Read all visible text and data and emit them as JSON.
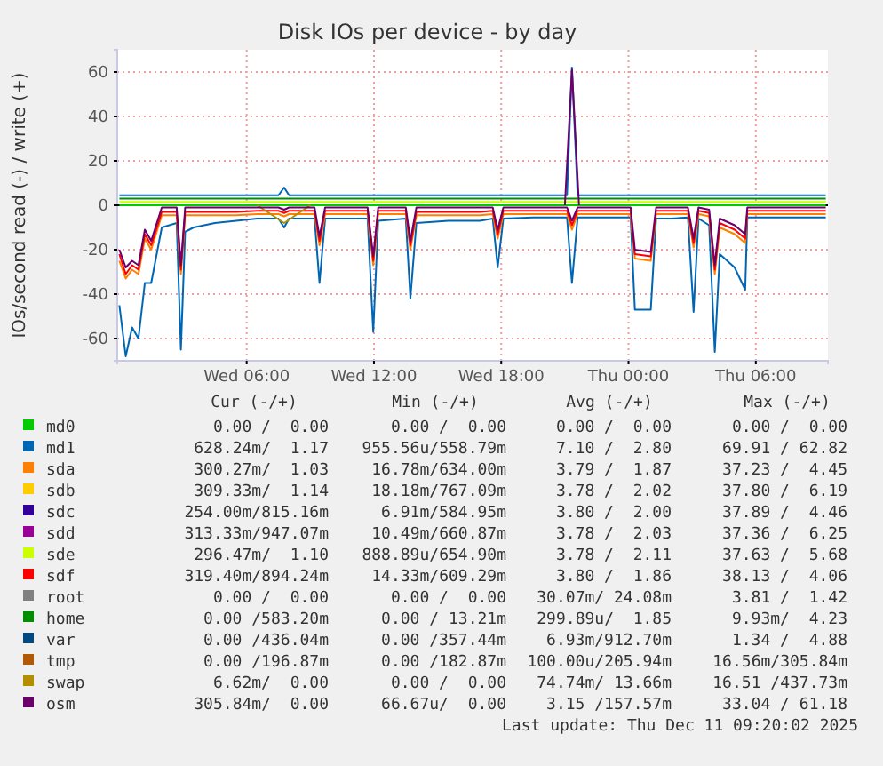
{
  "chart_data": {
    "type": "line",
    "title": "Disk IOs per device - by day",
    "ylabel": "IOs/second read (-) / write (+)",
    "x": [
      "2025-12-10T00:00",
      "2025-12-10T00:18",
      "2025-12-10T00:36",
      "2025-12-10T00:54",
      "2025-12-10T01:12",
      "2025-12-10T01:30",
      "2025-12-10T02:00",
      "2025-12-10T02:42",
      "2025-12-10T02:54",
      "2025-12-10T03:06",
      "2025-12-10T03:30",
      "2025-12-10T04:30",
      "2025-12-10T05:30",
      "2025-12-10T06:30",
      "2025-12-10T07:30",
      "2025-12-10T07:46",
      "2025-12-10T08:00",
      "2025-12-10T09:12",
      "2025-12-10T09:26",
      "2025-12-10T09:42",
      "2025-12-10T10:30",
      "2025-12-10T11:42",
      "2025-12-10T11:58",
      "2025-12-10T12:12",
      "2025-12-10T13:30",
      "2025-12-10T13:43",
      "2025-12-10T14:00",
      "2025-12-10T15:30",
      "2025-12-10T17:00",
      "2025-12-10T17:36",
      "2025-12-10T17:50",
      "2025-12-10T18:06",
      "2025-12-10T19:30",
      "2025-12-10T21:06",
      "2025-12-10T21:20",
      "2025-12-10T21:36",
      "2025-12-10T23:00",
      "2025-12-11T00:06",
      "2025-12-11T00:18",
      "2025-12-11T01:03",
      "2025-12-11T01:18",
      "2025-12-11T02:00",
      "2025-12-11T02:48",
      "2025-12-11T03:04",
      "2025-12-11T03:18",
      "2025-12-11T03:48",
      "2025-12-11T04:04",
      "2025-12-11T04:18",
      "2025-12-11T05:00",
      "2025-12-11T05:30",
      "2025-12-11T05:36",
      "2025-12-11T06:30",
      "2025-12-11T07:30",
      "2025-12-11T08:30",
      "2025-12-11T09:18"
    ],
    "xlim": [
      "2025-12-09T23:54",
      "2025-12-11T09:24"
    ],
    "xticks": [
      {
        "value": "2025-12-10T06:00",
        "label": "Wed 06:00"
      },
      {
        "value": "2025-12-10T12:00",
        "label": "Wed 12:00"
      },
      {
        "value": "2025-12-10T18:00",
        "label": "Wed 18:00"
      },
      {
        "value": "2025-12-11T00:00",
        "label": "Thu 00:00"
      },
      {
        "value": "2025-12-11T06:00",
        "label": "Thu 06:00"
      }
    ],
    "ylim": [
      -70,
      70
    ],
    "yticks": [
      -60,
      -40,
      -20,
      0,
      20,
      40,
      60
    ],
    "grid": true,
    "legend": "bottom",
    "marker": "none",
    "line_style": "solid",
    "series": [
      {
        "name": "md0",
        "color": "#00cc00",
        "x": [
          "2025-12-10T00:00",
          "2025-12-11T09:18"
        ],
        "values": [
          0,
          0
        ]
      },
      {
        "name": "md1",
        "color": "#0066b3",
        "values": [
          -45,
          -68,
          -55,
          -60,
          -35,
          -35,
          -10,
          -8,
          -65,
          -12,
          -10,
          -8,
          -7,
          -6,
          -6,
          -10,
          -6,
          -6,
          -35,
          -6,
          -6,
          -6,
          -57,
          -7,
          -6,
          -42,
          -8,
          -7,
          -7,
          -6,
          -28,
          -6,
          -5.5,
          -5.5,
          -35,
          -5.5,
          -5.5,
          -5.5,
          -47,
          -47,
          -6,
          -6,
          -5.5,
          -48,
          -6,
          -9,
          -66,
          -22,
          -28,
          -38,
          -5.5,
          -5.5,
          -5.5,
          -5.5,
          -5.5
        ]
      },
      {
        "name": "sda",
        "color": "#ff8000",
        "values": [
          -25,
          -33,
          -29,
          -31,
          -15,
          -20,
          -4.5,
          -4.5,
          -31,
          -4.5,
          -4.5,
          -4.5,
          -4.5,
          -4,
          -4,
          -5,
          -4,
          -4,
          -18,
          -4,
          -4,
          -4,
          -27,
          -4,
          -4,
          -20,
          -4.5,
          -4.5,
          -4.5,
          -4,
          -15,
          -4,
          -4,
          -4,
          -11,
          -4,
          -4,
          -4,
          -24,
          -25,
          -4,
          -4,
          -4,
          -19,
          -4,
          -5,
          -31,
          -10,
          -13,
          -17,
          -4,
          -4,
          -4,
          -4,
          -4
        ]
      },
      {
        "name": "sdb",
        "color": "#ffcc00",
        "values": [
          null,
          null,
          null,
          null,
          null,
          null,
          null,
          null,
          null,
          null,
          null,
          null,
          null,
          null,
          null,
          null,
          null,
          null,
          null,
          null,
          null,
          null,
          null,
          null,
          null,
          null,
          null,
          null,
          null,
          null,
          null,
          null,
          null,
          null,
          null,
          null,
          null,
          null,
          null,
          null,
          null,
          null,
          null,
          null,
          null,
          null,
          null,
          null,
          null,
          null,
          null,
          null,
          null,
          null,
          null
        ]
      },
      {
        "name": "sdc",
        "color": "#330099",
        "values": [
          null,
          null,
          null,
          null,
          null,
          null,
          null,
          null,
          null,
          null,
          null,
          null,
          null,
          null,
          null,
          null,
          null,
          null,
          null,
          null,
          null,
          null,
          null,
          null,
          null,
          null,
          null,
          null,
          null,
          null,
          null,
          null,
          null,
          null,
          null,
          null,
          null,
          null,
          null,
          null,
          null,
          null,
          null,
          null,
          null,
          null,
          null,
          null,
          null,
          null,
          null,
          null,
          null,
          null,
          null
        ]
      },
      {
        "name": "sdd",
        "color": "#990099",
        "values": [
          null,
          null,
          null,
          null,
          null,
          null,
          null,
          null,
          null,
          null,
          null,
          null,
          null,
          null,
          null,
          null,
          null,
          null,
          null,
          null,
          null,
          null,
          null,
          null,
          null,
          null,
          null,
          null,
          null,
          null,
          null,
          null,
          null,
          null,
          null,
          null,
          null,
          null,
          null,
          null,
          null,
          null,
          null,
          null,
          null,
          null,
          null,
          null,
          null,
          null,
          null,
          null,
          null,
          null,
          null
        ]
      },
      {
        "name": "sde",
        "color": "#ccff00",
        "x": [
          "2025-12-10T00:00",
          "2025-12-11T09:18"
        ],
        "values": [
          1.5,
          1.5
        ]
      },
      {
        "name": "sdf",
        "color": "#ff0000",
        "values": [
          -22,
          -31,
          -27,
          -29,
          -13,
          -18,
          -3,
          -3,
          -29,
          -3,
          -3,
          -3,
          -3,
          -2.5,
          -2.5,
          -3.5,
          -2.5,
          -2.5,
          -16,
          -2.5,
          -2.5,
          -2.5,
          -25,
          -2.5,
          -2.5,
          -18,
          -3,
          -3,
          -3,
          -2.5,
          -13,
          -2.5,
          -2.5,
          -2.5,
          -9,
          -2.5,
          -2.5,
          -2.5,
          -22,
          -23,
          -2.5,
          -2.5,
          -2.5,
          -17,
          -2.5,
          -3.5,
          -29,
          -8,
          -11,
          -15,
          -2.5,
          -2.5,
          -2.5,
          -2.5,
          -2.5
        ]
      },
      {
        "name": "root",
        "color": "#808080",
        "values": [
          null,
          null,
          null,
          null,
          null,
          null,
          null,
          null,
          null,
          null,
          null,
          null,
          null,
          null,
          null,
          null,
          null,
          null,
          null,
          null,
          null,
          null,
          null,
          null,
          null,
          null,
          null,
          null,
          null,
          null,
          null,
          null,
          null,
          null,
          null,
          null,
          null,
          null,
          null,
          null,
          null,
          null,
          null,
          null,
          null,
          null,
          null,
          null,
          null,
          null,
          null,
          null,
          null,
          null,
          null
        ]
      },
      {
        "name": "home",
        "color": "#008f00",
        "x": [
          "2025-12-10T00:00",
          "2025-12-11T09:18"
        ],
        "values": [
          3,
          3
        ]
      },
      {
        "name": "var",
        "color": "#00487d",
        "values": [
          null,
          null,
          null,
          null,
          null,
          null,
          null,
          null,
          null,
          null,
          null,
          null,
          null,
          null,
          null,
          null,
          null,
          null,
          null,
          null,
          null,
          null,
          null,
          null,
          null,
          null,
          null,
          null,
          null,
          null,
          null,
          null,
          null,
          null,
          null,
          null,
          null,
          null,
          null,
          null,
          null,
          null,
          null,
          null,
          null,
          null,
          null,
          null,
          null,
          null,
          null,
          null,
          null,
          null,
          null
        ]
      },
      {
        "name": "tmp",
        "color": "#b35a00",
        "values": [
          null,
          null,
          null,
          null,
          null,
          null,
          null,
          null,
          null,
          null,
          null,
          null,
          null,
          null,
          null,
          null,
          null,
          null,
          null,
          null,
          null,
          null,
          null,
          null,
          null,
          null,
          null,
          null,
          null,
          null,
          null,
          null,
          null,
          null,
          null,
          null,
          null,
          null,
          null,
          null,
          null,
          null,
          null,
          null,
          null,
          null,
          null,
          null,
          null,
          null,
          null,
          null,
          null,
          null,
          null
        ]
      },
      {
        "name": "swap",
        "color": "#b38f00",
        "x": [
          "2025-12-10T06:30",
          "2025-12-10T07:46",
          "2025-12-10T09:00"
        ],
        "values": [
          0,
          -8,
          0
        ]
      },
      {
        "name": "osm",
        "color": "#6b006b",
        "values": [
          -20,
          -28,
          -25,
          -27,
          -11,
          -16,
          -1,
          -1,
          -27,
          -1,
          -1,
          -1,
          -1,
          -1,
          -1,
          -2,
          -1,
          -1,
          -14,
          -1,
          -1,
          -1,
          -23,
          -1,
          -1,
          -16,
          -1,
          -1,
          -1,
          -1,
          -11,
          -1,
          -1,
          -1,
          -7,
          -1,
          -1,
          -1,
          -20,
          -21,
          -1,
          -1,
          -1,
          -15,
          -1,
          -2,
          -27,
          -6,
          -9,
          -13,
          -1,
          -1,
          -1,
          -1,
          -1
        ]
      },
      {
        "color": "#0066b3",
        "x": [
          "2025-12-10T00:00",
          "2025-12-10T07:30",
          "2025-12-10T07:46",
          "2025-12-10T08:00",
          "2025-12-10T21:06",
          "2025-12-10T21:20",
          "2025-12-10T21:36",
          "2025-12-11T09:18"
        ],
        "values": [
          4.5,
          4.5,
          8,
          4.5,
          4.5,
          62,
          4.5,
          4.5
        ]
      },
      {
        "color": "#6b006b",
        "x": [
          "2025-12-10T21:00",
          "2025-12-10T21:20",
          "2025-12-10T21:40"
        ],
        "values": [
          0,
          61,
          0
        ]
      }
    ],
    "annotations": [
      "Cur (-/+)",
      "Min (-/+)",
      "Avg (-/+)",
      "Max (-/+)",
      "0.00 /  0.00",
      "0.00 /  0.00",
      "0.00 /  0.00",
      "0.00 /  0.00",
      "628.24m/  1.17",
      "955.56u/558.79m",
      "7.10 /  2.80",
      "69.91 / 62.82",
      "300.27m/  1.03",
      "16.78m/634.00m",
      "3.79 /  1.87",
      "37.23 /  4.45",
      "309.33m/  1.14",
      "18.18m/767.09m",
      "3.78 /  2.02",
      "37.80 /  6.19",
      "254.00m/815.16m",
      "6.91m/584.95m",
      "3.80 /  2.00",
      "37.89 /  4.46",
      "313.33m/947.07m",
      "10.49m/660.87m",
      "3.78 /  2.03",
      "37.36 /  6.25",
      "296.47m/  1.10",
      "888.89u/654.90m",
      "3.78 /  2.11",
      "37.63 /  5.68",
      "319.40m/894.24m",
      "14.33m/609.29m",
      "3.80 /  1.86",
      "38.13 /  4.06",
      "0.00 /  0.00",
      "0.00 /  0.00",
      "30.07m/ 24.08m",
      "3.81 /  1.42",
      "0.00 /583.20m",
      "0.00 / 13.21m",
      "299.89u/  1.85",
      "9.93m/  4.23",
      "0.00 /436.04m",
      "0.00 /357.44m",
      "6.93m/912.70m",
      "1.34 /  4.88",
      "0.00 /196.87m",
      "0.00 /182.87m",
      "100.00u/205.94m",
      "16.56m/305.84m",
      "6.62m/  0.00",
      "0.00 /  0.00",
      "74.74m/ 13.66m",
      "16.51 /437.73m",
      "305.84m/  0.00",
      "66.67u/  0.00",
      "3.15 /157.57m",
      "33.04 / 61.18",
      "Last update: Thu Dec 11 09:20:02 2025"
    ]
  }
}
